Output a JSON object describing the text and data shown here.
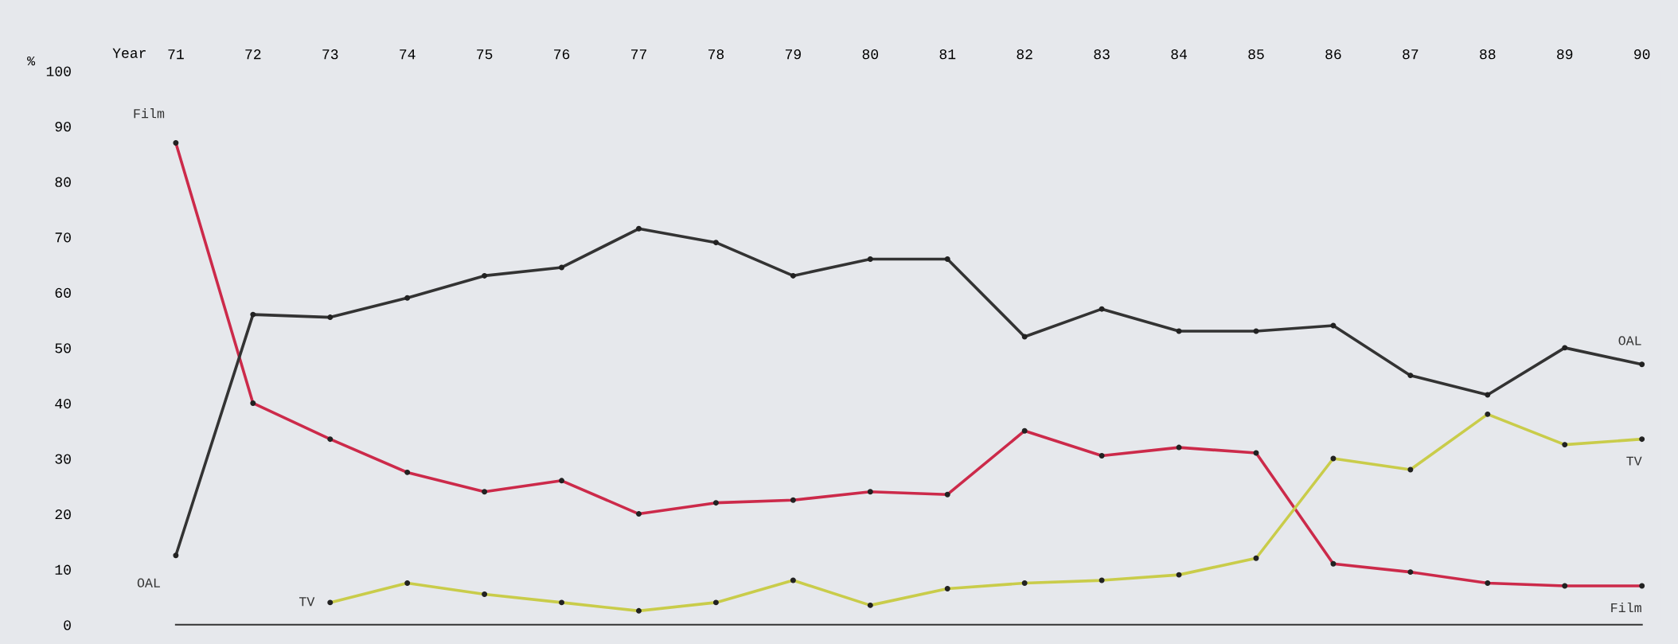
{
  "chart_data": {
    "type": "line",
    "xlabel": "Year",
    "ylabel": "%",
    "categories": [
      "71",
      "72",
      "73",
      "74",
      "75",
      "76",
      "77",
      "78",
      "79",
      "80",
      "81",
      "82",
      "83",
      "84",
      "85",
      "86",
      "87",
      "88",
      "89",
      "90"
    ],
    "series": [
      {
        "name": "Film",
        "color": "#cc2a4a",
        "values": [
          87,
          40,
          33.5,
          27.5,
          24,
          26,
          20,
          22,
          22.5,
          24,
          23.5,
          35,
          30.5,
          32,
          31,
          11,
          9.5,
          7.5,
          7,
          7
        ]
      },
      {
        "name": "OAL",
        "color": "#333333",
        "values": [
          12.5,
          56,
          55.5,
          59,
          63,
          64.5,
          71.5,
          69,
          63,
          66,
          66,
          52,
          57,
          53,
          53,
          54,
          45,
          41.5,
          50,
          47
        ]
      },
      {
        "name": "TV",
        "color": "#c9cc4a",
        "values": [
          null,
          null,
          4,
          7.5,
          5.5,
          4,
          2.5,
          4,
          8,
          3.5,
          6.5,
          7.5,
          8,
          9,
          12,
          30,
          28,
          38,
          32.5,
          33.5
        ]
      }
    ],
    "ylim": [
      0,
      100
    ],
    "yticks": [
      0,
      10,
      20,
      30,
      40,
      50,
      60,
      70,
      80,
      90,
      100
    ],
    "marker": "circle",
    "line_style": "solid",
    "grid": false,
    "legend": false
  }
}
